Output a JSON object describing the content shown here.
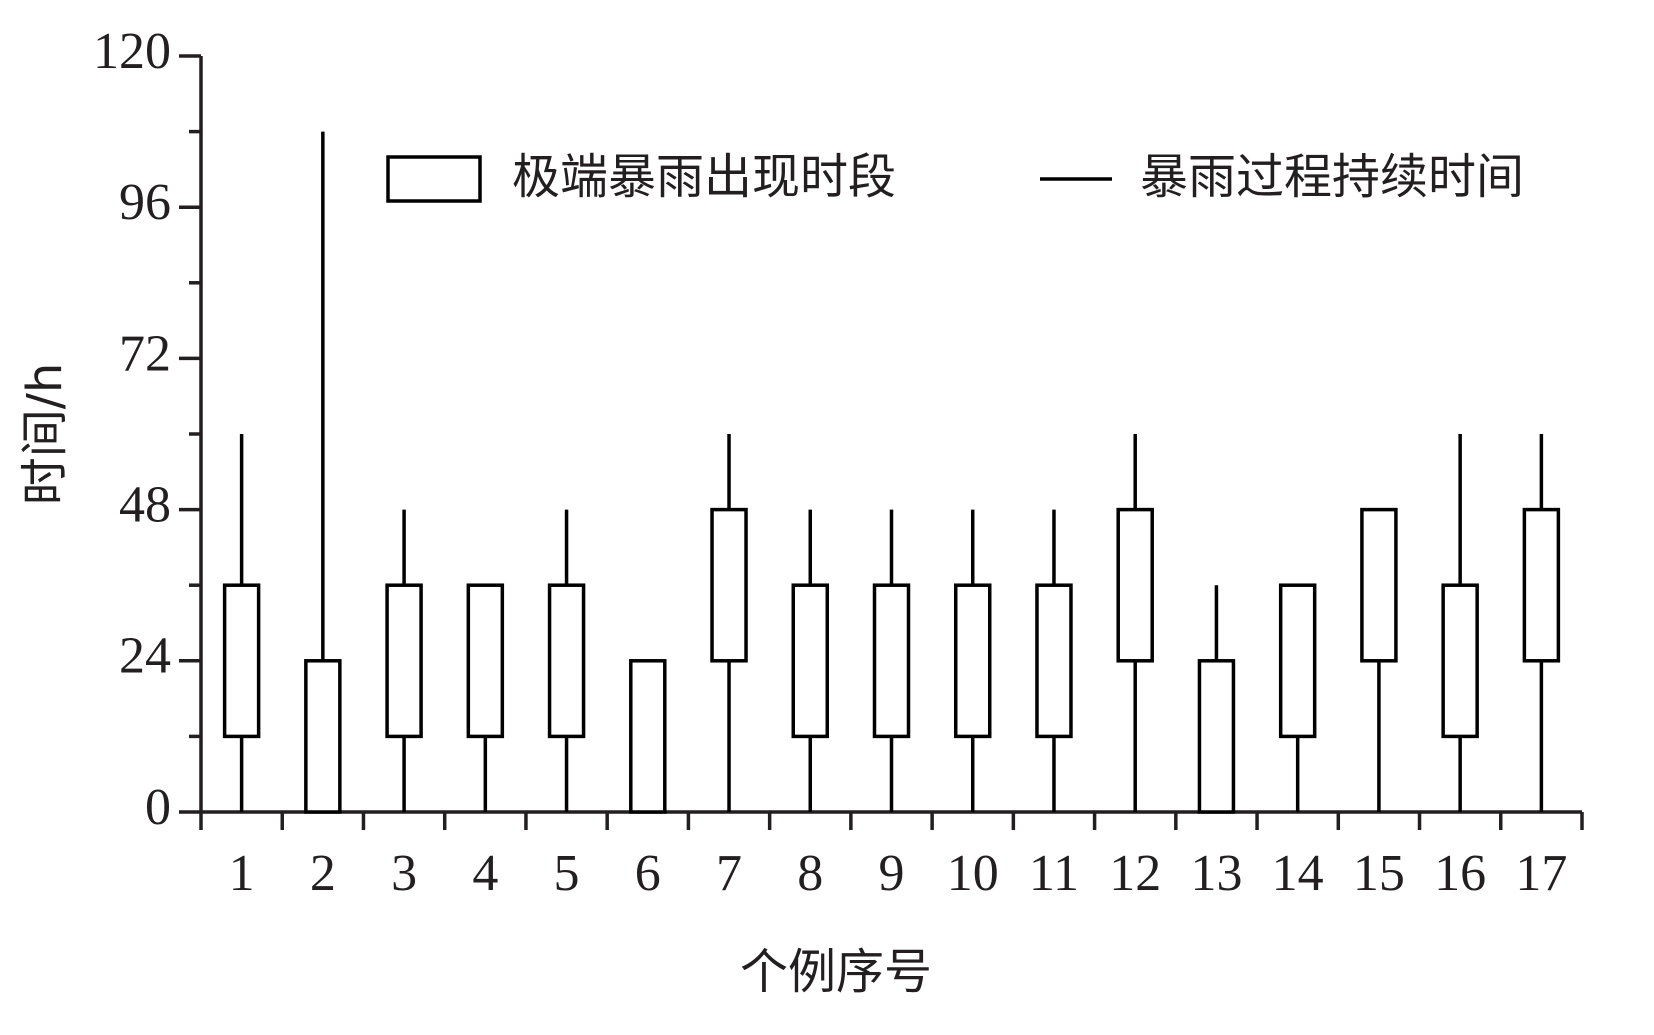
{
  "chart_data": {
    "type": "floating-bar-line",
    "xlabel": "个例序号",
    "ylabel": "时间/h",
    "categories": [
      "1",
      "2",
      "3",
      "4",
      "5",
      "6",
      "7",
      "8",
      "9",
      "10",
      "11",
      "12",
      "13",
      "14",
      "15",
      "16",
      "17"
    ],
    "series": [
      {
        "name": "极端暴雨出现时段",
        "color": "#000000",
        "start": [
          12,
          0,
          12,
          12,
          12,
          0,
          24,
          12,
          12,
          12,
          12,
          24,
          0,
          12,
          24,
          12,
          24
        ],
        "end": [
          36,
          24,
          36,
          36,
          36,
          24,
          48,
          36,
          36,
          36,
          36,
          48,
          24,
          36,
          48,
          36,
          48
        ]
      },
      {
        "name": "暴雨过程持续时间",
        "color": "#000000",
        "values": [
          60,
          108,
          48,
          36,
          48,
          24,
          60,
          48,
          48,
          48,
          48,
          60,
          36,
          36,
          48,
          60,
          60
        ]
      }
    ],
    "ylim": [
      0,
      120
    ],
    "yticks": [
      0,
      24,
      48,
      72,
      96,
      120
    ],
    "minor_yticks": [
      12,
      36,
      60,
      84,
      108
    ],
    "grid": false
  }
}
